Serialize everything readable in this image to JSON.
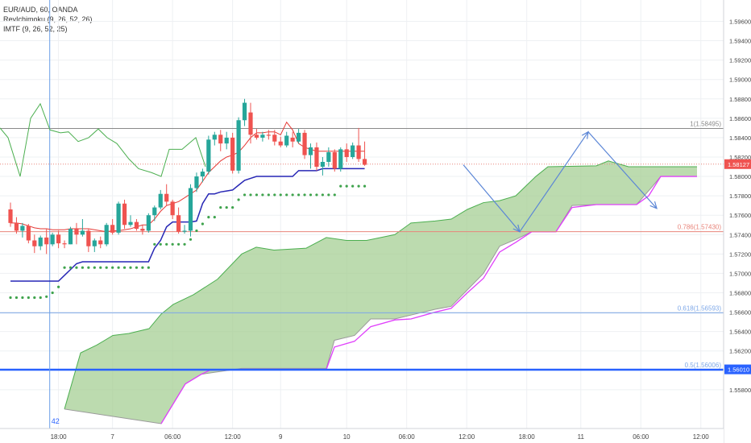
{
  "legend": {
    "symbol": "EUR/AUD, 60, OANDA",
    "ind1": "RevIchimoku (9, 26, 52, 26)",
    "ind2": "IMTF (9, 26, 52, 25)"
  },
  "colors": {
    "up": "#26a69a",
    "down": "#ef5350",
    "cloud": "#a5cf94",
    "cloud_edge": "#4caf50",
    "pink": "#e040fb",
    "blue_line": "#2727b5",
    "red_line": "#e53935",
    "dots": "#3fa34d",
    "hline": "#2962ff",
    "fib_blue": "#7ea8e8",
    "fib_red": "#e8857b",
    "fib_gray": "#8a8a8a",
    "arrow": "#5b86d6",
    "osc": "#4caf50"
  },
  "chart_data": {
    "type": "candlestick",
    "ylim": [
      1.554,
      1.5982
    ],
    "x_ticks": [
      "18:00",
      "7",
      "06:00",
      "12:00",
      "9",
      "10",
      "06:00",
      "12:00",
      "18:00",
      "11",
      "06:00",
      "12:00"
    ],
    "x_tick_bars": [
      8,
      17,
      27,
      37,
      45,
      56,
      66,
      76,
      86,
      95,
      105,
      115
    ],
    "y_ticks": [
      "1.59600",
      "1.59400",
      "1.59200",
      "1.59000",
      "1.58800",
      "1.58600",
      "1.58400",
      "1.58200",
      "1.58000",
      "1.57800",
      "1.57600",
      "1.57400",
      "1.57200",
      "1.57000",
      "1.56800",
      "1.56600",
      "1.56400",
      "1.56200",
      "1.56000",
      "1.55800"
    ],
    "y_tick_values": [
      1.596,
      1.594,
      1.592,
      1.59,
      1.588,
      1.586,
      1.584,
      1.582,
      1.58,
      1.578,
      1.576,
      1.574,
      1.572,
      1.57,
      1.568,
      1.566,
      1.564,
      1.562,
      1.56,
      1.558
    ],
    "last_price": "1.58127",
    "last_price_value": 1.58127,
    "level_label": "1.56010",
    "level_value": 1.5601,
    "fib_levels": [
      {
        "label": "1(1.58495)",
        "value": 1.58495,
        "kind": "gray"
      },
      {
        "label": "0.786(1.57430)",
        "value": 1.5743,
        "kind": "red"
      },
      {
        "label": "0.618(1.56593)",
        "value": 1.56593,
        "kind": "blue"
      },
      {
        "label": "0.5(1.56006)",
        "value": 1.56006,
        "kind": "blue_thick"
      }
    ],
    "vline_bar": 6,
    "vline_label": "42",
    "candles": [
      [
        1.5766,
        1.5773,
        1.5748,
        1.5752
      ],
      [
        1.5752,
        1.5758,
        1.5741,
        1.5744
      ],
      [
        1.5744,
        1.5752,
        1.5737,
        1.5749
      ],
      [
        1.5749,
        1.5751,
        1.5731,
        1.5734
      ],
      [
        1.5734,
        1.574,
        1.5721,
        1.5728
      ],
      [
        1.5728,
        1.5739,
        1.5724,
        1.5737
      ],
      [
        1.5737,
        1.5746,
        1.572,
        1.573
      ],
      [
        1.573,
        1.5742,
        1.5728,
        1.574
      ],
      [
        1.574,
        1.5744,
        1.5726,
        1.5731
      ],
      [
        1.5731,
        1.5734,
        1.5726,
        1.573
      ],
      [
        1.573,
        1.5748,
        1.573,
        1.5746
      ],
      [
        1.5746,
        1.5752,
        1.573,
        1.574
      ],
      [
        1.574,
        1.5756,
        1.5738,
        1.5744
      ],
      [
        1.5744,
        1.5746,
        1.5722,
        1.5728
      ],
      [
        1.5728,
        1.5736,
        1.5722,
        1.5734
      ],
      [
        1.5734,
        1.5738,
        1.5726,
        1.573
      ],
      [
        1.573,
        1.5752,
        1.5728,
        1.575
      ],
      [
        1.575,
        1.5756,
        1.574,
        1.5742
      ],
      [
        1.5742,
        1.5774,
        1.574,
        1.5772
      ],
      [
        1.5772,
        1.5776,
        1.5746,
        1.575
      ],
      [
        1.575,
        1.576,
        1.5748,
        1.5753
      ],
      [
        1.5753,
        1.5756,
        1.5744,
        1.5746
      ],
      [
        1.5746,
        1.575,
        1.574,
        1.5744
      ],
      [
        1.5744,
        1.5762,
        1.5742,
        1.576
      ],
      [
        1.576,
        1.577,
        1.5754,
        1.5768
      ],
      [
        1.5768,
        1.5786,
        1.5766,
        1.5782
      ],
      [
        1.5782,
        1.5792,
        1.577,
        1.5774
      ],
      [
        1.5774,
        1.5776,
        1.5756,
        1.576
      ],
      [
        1.576,
        1.5768,
        1.5741,
        1.5743
      ],
      [
        1.5743,
        1.575,
        1.5741,
        1.5744
      ],
      [
        1.5744,
        1.5792,
        1.5738,
        1.5788
      ],
      [
        1.5788,
        1.5804,
        1.5784,
        1.58
      ],
      [
        1.58,
        1.5808,
        1.5794,
        1.5805
      ],
      [
        1.5805,
        1.5842,
        1.5802,
        1.5838
      ],
      [
        1.5838,
        1.5846,
        1.5832,
        1.5843
      ],
      [
        1.5843,
        1.5848,
        1.5826,
        1.5834
      ],
      [
        1.5834,
        1.5846,
        1.5828,
        1.584
      ],
      [
        1.584,
        1.5845,
        1.5803,
        1.5806
      ],
      [
        1.5806,
        1.5861,
        1.5803,
        1.5858
      ],
      [
        1.5858,
        1.588,
        1.5852,
        1.5876
      ],
      [
        1.5866,
        1.5876,
        1.5834,
        1.5843
      ],
      [
        1.5843,
        1.5849,
        1.5838,
        1.584
      ],
      [
        1.584,
        1.5846,
        1.5836,
        1.5843
      ],
      [
        1.5843,
        1.5848,
        1.5838,
        1.5842
      ],
      [
        1.5843,
        1.5848,
        1.5832,
        1.5836
      ],
      [
        1.5836,
        1.5841,
        1.583,
        1.5832
      ],
      [
        1.5832,
        1.5846,
        1.583,
        1.5842
      ],
      [
        1.584,
        1.5846,
        1.583,
        1.5836
      ],
      [
        1.5836,
        1.5849,
        1.5834,
        1.5845
      ],
      [
        1.5845,
        1.5848,
        1.5818,
        1.5822
      ],
      [
        1.5822,
        1.5834,
        1.5808,
        1.583
      ],
      [
        1.583,
        1.5835,
        1.5806,
        1.581
      ],
      [
        1.581,
        1.582,
        1.5801,
        1.5815
      ],
      [
        1.5815,
        1.583,
        1.581,
        1.5825
      ],
      [
        1.5825,
        1.5828,
        1.5805,
        1.5808
      ],
      [
        1.5808,
        1.583,
        1.5805,
        1.5828
      ],
      [
        1.5828,
        1.5834,
        1.5815,
        1.582
      ],
      [
        1.582,
        1.5835,
        1.5818,
        1.5832
      ],
      [
        1.5832,
        1.585,
        1.5815,
        1.5818
      ],
      [
        1.5818,
        1.5836,
        1.5811,
        1.5812
      ]
    ],
    "candle_step": 7.45,
    "red_line": [
      1.5752,
      1.5752,
      1.5751,
      1.5749,
      1.5747,
      1.5746,
      1.5746,
      1.5745,
      1.5745,
      1.5745,
      1.5746,
      1.5746,
      1.5746,
      1.5746,
      1.5745,
      1.5744,
      1.5743,
      1.5744,
      1.5744,
      1.5745,
      1.5746,
      1.5748,
      1.575,
      1.575,
      1.5756,
      1.5764,
      1.577,
      1.5772,
      1.5774,
      1.5778,
      1.5782,
      1.5786,
      1.5795,
      1.5804,
      1.581,
      1.5816,
      1.582,
      1.5822,
      1.5825,
      1.5832,
      1.584,
      1.5845,
      1.5845,
      1.5846,
      1.5846,
      1.5843,
      1.5856,
      1.5848,
      1.5834,
      1.583,
      1.5828,
      1.5826,
      1.5826,
      1.5826,
      1.5826,
      1.5826,
      1.5826,
      1.5826,
      1.5826,
      1.5826
    ],
    "blue_line": [
      1.5692,
      1.5692,
      1.5692,
      1.5692,
      1.5692,
      1.5692,
      1.5692,
      1.5692,
      1.5692,
      1.5698,
      1.5704,
      1.571,
      1.5712,
      1.5712,
      1.5712,
      1.5712,
      1.5712,
      1.5712,
      1.5712,
      1.5712,
      1.5712,
      1.5712,
      1.5712,
      1.5712,
      1.5726,
      1.5734,
      1.5748,
      1.5753,
      1.5753,
      1.5753,
      1.5753,
      1.5754,
      1.5772,
      1.5782,
      1.5782,
      1.5784,
      1.5785,
      1.5786,
      1.5791,
      1.5796,
      1.5798,
      1.58,
      1.58,
      1.58,
      1.58,
      1.58,
      1.58,
      1.58,
      1.5806,
      1.5806,
      1.5806,
      1.5806,
      1.5808,
      1.5808,
      1.5808,
      1.5808,
      1.5808,
      1.5808,
      1.5808,
      1.5808
    ],
    "dots": [
      1.5675,
      1.5675,
      1.5675,
      1.5675,
      1.5675,
      1.5675,
      1.5676,
      1.568,
      1.5686,
      1.5706,
      1.5706,
      1.5706,
      1.5706,
      1.5706,
      1.5706,
      1.5706,
      1.5706,
      1.5706,
      1.5706,
      1.5706,
      1.5706,
      1.5706,
      1.5706,
      1.5706,
      1.573,
      1.573,
      1.573,
      1.573,
      1.573,
      1.573,
      1.5735,
      1.5744,
      1.5751,
      1.5758,
      1.5758,
      1.5768,
      1.5768,
      1.5768,
      1.5776,
      1.5781,
      1.5781,
      1.5781,
      1.5781,
      1.5781,
      1.5781,
      1.5781,
      1.5781,
      1.5781,
      1.5781,
      1.5781,
      1.5781,
      1.5781,
      1.5781,
      1.5781,
      1.5781,
      1.579,
      1.579,
      1.579,
      1.579,
      1.579
    ],
    "cloud_top": [
      [
        80,
        1.556
      ],
      [
        100,
        1.5618
      ],
      [
        120,
        1.5626
      ],
      [
        140,
        1.5636
      ],
      [
        160,
        1.5638
      ],
      [
        185,
        1.5643
      ],
      [
        200,
        1.5658
      ],
      [
        215,
        1.5668
      ],
      [
        240,
        1.5678
      ],
      [
        270,
        1.5694
      ],
      [
        300,
        1.572
      ],
      [
        318,
        1.5727
      ],
      [
        340,
        1.5724
      ],
      [
        380,
        1.5726
      ],
      [
        405,
        1.5737
      ],
      [
        430,
        1.5734
      ],
      [
        455,
        1.5734
      ],
      [
        490,
        1.574
      ],
      [
        510,
        1.5752
      ],
      [
        540,
        1.5754
      ],
      [
        560,
        1.5756
      ],
      [
        580,
        1.5766
      ],
      [
        600,
        1.5773
      ],
      [
        620,
        1.5775
      ],
      [
        640,
        1.578
      ],
      [
        665,
        1.58
      ],
      [
        680,
        1.581
      ],
      [
        740,
        1.5811
      ],
      [
        755,
        1.5816
      ],
      [
        780,
        1.581
      ],
      [
        820,
        1.581
      ],
      [
        865,
        1.581
      ]
    ],
    "cloud_bottom": [
      [
        80,
        1.556
      ],
      [
        200,
        1.5545
      ],
      [
        230,
        1.5586
      ],
      [
        250,
        1.5596
      ],
      [
        300,
        1.5602
      ],
      [
        380,
        1.5602
      ],
      [
        405,
        1.5602
      ],
      [
        415,
        1.5631
      ],
      [
        440,
        1.5636
      ],
      [
        460,
        1.5653
      ],
      [
        490,
        1.5653
      ],
      [
        510,
        1.5657
      ],
      [
        540,
        1.5663
      ],
      [
        560,
        1.5666
      ],
      [
        580,
        1.5683
      ],
      [
        600,
        1.57
      ],
      [
        620,
        1.5728
      ],
      [
        640,
        1.5735
      ],
      [
        660,
        1.5743
      ],
      [
        690,
        1.5743
      ],
      [
        710,
        1.577
      ],
      [
        740,
        1.5771
      ],
      [
        790,
        1.5771
      ],
      [
        810,
        1.579
      ],
      [
        820,
        1.58
      ],
      [
        865,
        1.58
      ]
    ],
    "pink_line": [
      [
        200,
        1.5545
      ],
      [
        230,
        1.5586
      ],
      [
        250,
        1.5596
      ],
      [
        260,
        1.56
      ],
      [
        300,
        1.5601
      ],
      [
        405,
        1.5601
      ],
      [
        415,
        1.5624
      ],
      [
        440,
        1.563
      ],
      [
        460,
        1.5645
      ],
      [
        490,
        1.5652
      ],
      [
        510,
        1.5653
      ],
      [
        540,
        1.566
      ],
      [
        560,
        1.5664
      ],
      [
        580,
        1.568
      ],
      [
        600,
        1.5695
      ],
      [
        620,
        1.5722
      ],
      [
        640,
        1.5732
      ],
      [
        660,
        1.5743
      ],
      [
        690,
        1.5743
      ],
      [
        710,
        1.5768
      ],
      [
        740,
        1.5771
      ],
      [
        790,
        1.5771
      ],
      [
        805,
        1.578
      ],
      [
        820,
        1.58
      ],
      [
        865,
        1.58
      ]
    ],
    "osc_line": [
      [
        0,
        1.585
      ],
      [
        10,
        1.584
      ],
      [
        25,
        1.58
      ],
      [
        38,
        1.586
      ],
      [
        50,
        1.5875
      ],
      [
        62,
        1.5848
      ],
      [
        75,
        1.5845
      ],
      [
        85,
        1.5846
      ],
      [
        97,
        1.5836
      ],
      [
        110,
        1.584
      ],
      [
        122,
        1.5849
      ],
      [
        133,
        1.584
      ],
      [
        145,
        1.5834
      ],
      [
        160,
        1.5818
      ],
      [
        172,
        1.5808
      ],
      [
        188,
        1.5804
      ],
      [
        200,
        1.58
      ],
      [
        210,
        1.5828
      ],
      [
        226,
        1.5828
      ],
      [
        243,
        1.584
      ],
      [
        255,
        1.581
      ]
    ],
    "projection": [
      [
        575,
        1.5812
      ],
      [
        645,
        1.5743
      ],
      [
        730,
        1.5846
      ],
      [
        815,
        1.5767
      ]
    ]
  }
}
